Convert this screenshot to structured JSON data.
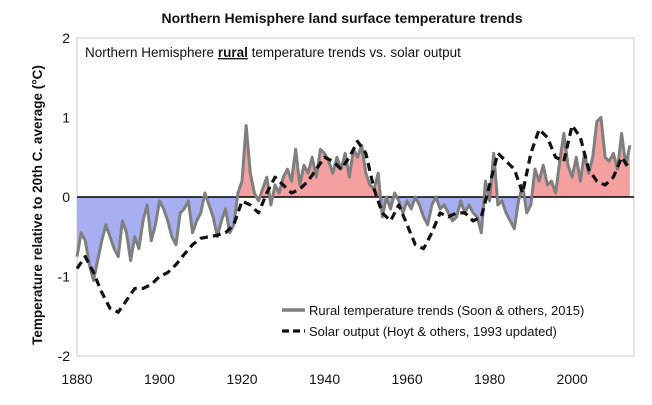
{
  "chart_data": {
    "type": "area",
    "title": "Northern Hemisphere land surface temperature trends",
    "subtitle_parts": [
      "Northern Hemisphere ",
      "rural",
      " temperature trends vs. solar output"
    ],
    "ylabel": "Temperature relative to 20th C. average (°C)",
    "xlabel": "",
    "xlim": [
      1880,
      2015
    ],
    "ylim": [
      -2,
      2
    ],
    "x_ticks": [
      1880,
      1900,
      1920,
      1940,
      1960,
      1980,
      2000
    ],
    "y_ticks": [
      2,
      1,
      0,
      -1,
      -2
    ],
    "legend_position": "bottom-right",
    "colors": {
      "rural_line": "#7f7f7f",
      "solar_line": "#111111",
      "positive_fill": "#f4a0a0",
      "negative_fill": "#a8aef2",
      "zero_line": "#000000"
    },
    "series": [
      {
        "name": "Rural temperature trends (Soon & others, 2015)",
        "style": "solid",
        "x": [
          1880,
          1881,
          1882,
          1883,
          1884,
          1885,
          1886,
          1887,
          1888,
          1889,
          1890,
          1891,
          1892,
          1893,
          1894,
          1895,
          1896,
          1897,
          1898,
          1899,
          1900,
          1901,
          1902,
          1903,
          1904,
          1905,
          1906,
          1907,
          1908,
          1909,
          1910,
          1911,
          1912,
          1913,
          1914,
          1915,
          1916,
          1917,
          1918,
          1919,
          1920,
          1921,
          1922,
          1923,
          1924,
          1925,
          1926,
          1927,
          1928,
          1929,
          1930,
          1931,
          1932,
          1933,
          1934,
          1935,
          1936,
          1937,
          1938,
          1939,
          1940,
          1941,
          1942,
          1943,
          1944,
          1945,
          1946,
          1947,
          1948,
          1949,
          1950,
          1951,
          1952,
          1953,
          1954,
          1955,
          1956,
          1957,
          1958,
          1959,
          1960,
          1961,
          1962,
          1963,
          1964,
          1965,
          1966,
          1967,
          1968,
          1969,
          1970,
          1971,
          1972,
          1973,
          1974,
          1975,
          1976,
          1977,
          1978,
          1979,
          1980,
          1981,
          1982,
          1983,
          1984,
          1985,
          1986,
          1987,
          1988,
          1989,
          1990,
          1991,
          1992,
          1993,
          1994,
          1995,
          1996,
          1997,
          1998,
          1999,
          2000,
          2001,
          2002,
          2003,
          2004,
          2005,
          2006,
          2007,
          2008,
          2009,
          2010,
          2011,
          2012,
          2013,
          2014
        ],
        "values": [
          -0.75,
          -0.45,
          -0.55,
          -0.85,
          -1.05,
          -0.8,
          -0.55,
          -0.35,
          -0.5,
          -0.65,
          -0.75,
          -0.3,
          -0.45,
          -0.8,
          -0.5,
          -0.65,
          -0.3,
          -0.1,
          -0.55,
          -0.35,
          -0.05,
          -0.15,
          -0.3,
          -0.5,
          -0.6,
          -0.2,
          -0.15,
          -0.05,
          -0.45,
          -0.3,
          -0.2,
          0.05,
          -0.1,
          -0.25,
          -0.5,
          -0.3,
          -0.15,
          -0.45,
          -0.35,
          0.05,
          0.2,
          0.9,
          0.3,
          0.05,
          -0.05,
          0.1,
          0.25,
          -0.1,
          0.15,
          0.05,
          0.25,
          0.35,
          0.2,
          0.6,
          0.15,
          0.4,
          0.3,
          0.5,
          0.25,
          0.6,
          0.55,
          0.45,
          0.3,
          0.5,
          0.35,
          0.55,
          0.25,
          0.6,
          0.5,
          0.65,
          0.3,
          0.15,
          0.1,
          0.3,
          -0.25,
          0.0,
          -0.15,
          0.05,
          -0.05,
          -0.2,
          -0.05,
          -0.15,
          0.0,
          -0.1,
          -0.25,
          -0.35,
          -0.1,
          0.0,
          -0.15,
          -0.1,
          -0.2,
          -0.3,
          -0.25,
          -0.05,
          -0.2,
          -0.1,
          -0.2,
          -0.25,
          -0.45,
          0.2,
          -0.05,
          0.55,
          -0.1,
          -0.05,
          -0.2,
          -0.3,
          -0.4,
          -0.05,
          0.15,
          -0.2,
          -0.1,
          0.35,
          0.2,
          0.4,
          0.15,
          0.2,
          0.05,
          0.45,
          0.8,
          0.4,
          0.25,
          0.5,
          0.2,
          0.55,
          0.3,
          0.5,
          0.95,
          1.0,
          0.5,
          0.45,
          0.55,
          0.35,
          0.8,
          0.4,
          0.65
        ]
      },
      {
        "name": "Solar output (Hoyt & others, 1993 updated)",
        "style": "dashed",
        "x": [
          1880,
          1882,
          1884,
          1886,
          1888,
          1890,
          1892,
          1894,
          1896,
          1898,
          1900,
          1902,
          1904,
          1906,
          1908,
          1910,
          1912,
          1914,
          1916,
          1918,
          1920,
          1922,
          1924,
          1926,
          1928,
          1930,
          1932,
          1934,
          1936,
          1938,
          1940,
          1942,
          1944,
          1946,
          1948,
          1950,
          1952,
          1954,
          1956,
          1958,
          1960,
          1962,
          1964,
          1966,
          1968,
          1970,
          1972,
          1974,
          1976,
          1978,
          1980,
          1982,
          1984,
          1986,
          1988,
          1990,
          1992,
          1994,
          1996,
          1998,
          2000,
          2002,
          2004,
          2006,
          2008,
          2010,
          2012,
          2014
        ],
        "values": [
          -0.9,
          -0.75,
          -0.95,
          -1.2,
          -1.4,
          -1.45,
          -1.3,
          -1.15,
          -1.15,
          -1.1,
          -1.0,
          -0.95,
          -0.85,
          -0.72,
          -0.6,
          -0.52,
          -0.5,
          -0.48,
          -0.45,
          -0.35,
          -0.05,
          -0.1,
          -0.2,
          0.05,
          0.25,
          0.15,
          0.05,
          0.1,
          0.2,
          0.35,
          0.5,
          0.45,
          0.35,
          0.5,
          0.7,
          0.55,
          0.1,
          -0.2,
          -0.3,
          -0.1,
          -0.35,
          -0.6,
          -0.65,
          -0.45,
          -0.2,
          -0.25,
          -0.2,
          -0.2,
          -0.3,
          -0.25,
          0.15,
          0.55,
          0.45,
          0.35,
          0.05,
          0.55,
          0.85,
          0.75,
          0.5,
          0.45,
          0.9,
          0.75,
          0.35,
          0.2,
          0.15,
          0.25,
          0.5,
          0.35
        ]
      }
    ]
  }
}
